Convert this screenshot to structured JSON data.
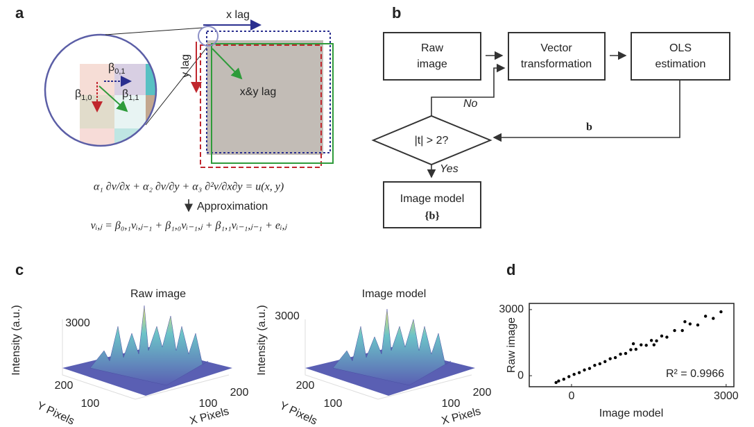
{
  "panel_a": {
    "label": "a",
    "x_lag": "x lag",
    "y_lag": "y lag",
    "xy_lag": "x&y lag",
    "coefficients": [
      {
        "symbol": "β",
        "subscript": "0,1"
      },
      {
        "symbol": "β",
        "subscript": "1,0"
      },
      {
        "symbol": "β",
        "subscript": "1,1"
      }
    ],
    "equation": "α₁ ∂v/∂x + α₂ ∂v/∂y + α₃ ∂²v/∂x∂y = u(x, y)",
    "approximation": "Approximation",
    "model": "vᵢ,ⱼ = β₀,₁vᵢ,ⱼ₋₁ + β₁,₀vᵢ₋₁,ⱼ + β₁,₁vᵢ₋₁,ⱼ₋₁ + eᵢ,ⱼ"
  },
  "panel_b": {
    "label": "b",
    "nodes": [
      {
        "lines": [
          "Raw",
          "image"
        ]
      },
      {
        "lines": [
          "Vector",
          "transformation"
        ]
      },
      {
        "lines": [
          "OLS",
          "estimation"
        ]
      },
      {
        "lines": [
          "|t| > 2?"
        ]
      },
      {
        "lines": [
          "Image model",
          "{b}"
        ]
      }
    ],
    "edges": {
      "no": "No",
      "yes": "Yes",
      "feedback": "b"
    }
  },
  "panel_c": {
    "label": "c",
    "plots": [
      {
        "title": "Raw image",
        "z_label": "Intensity (a.u.)",
        "z_tick": 3000,
        "y_ticks": [
          200,
          100
        ],
        "x_ticks": [
          100,
          200
        ],
        "y_label": "Y Pixels",
        "x_label": "X Pixels"
      },
      {
        "title": "Image model",
        "z_label": "Intensity (a.u.)",
        "z_tick": 3000,
        "y_ticks": [
          200,
          100
        ],
        "x_ticks": [
          100,
          200
        ],
        "y_label": "Y Pixels",
        "x_label": "X Pixels"
      }
    ]
  },
  "panel_d": {
    "label": "d",
    "chart_data": {
      "type": "scatter",
      "xlabel": "Image model",
      "ylabel": "Raw image",
      "color": "#000000",
      "x": [
        -300,
        -250,
        -150,
        -50,
        50,
        150,
        250,
        350,
        450,
        550,
        650,
        750,
        850,
        950,
        1050,
        1150,
        1250,
        1350,
        1450,
        1550,
        1650,
        1750,
        1850,
        2000,
        2150,
        2300,
        2450,
        2600,
        2750,
        2900,
        1200,
        1600,
        2200
      ],
      "values": [
        -310,
        -240,
        -160,
        -40,
        60,
        140,
        260,
        330,
        470,
        540,
        640,
        770,
        820,
        980,
        1010,
        1180,
        1200,
        1400,
        1380,
        1600,
        1580,
        1800,
        1750,
        2050,
        2050,
        2350,
        2300,
        2700,
        2600,
        2900,
        1450,
        1400,
        2450
      ],
      "xlim": [
        -820,
        3150
      ],
      "ylim": [
        -500,
        3280
      ],
      "xticks": [
        0,
        3000
      ],
      "yticks": [
        0,
        3000
      ],
      "annotation": "R² = 0.9966"
    }
  }
}
